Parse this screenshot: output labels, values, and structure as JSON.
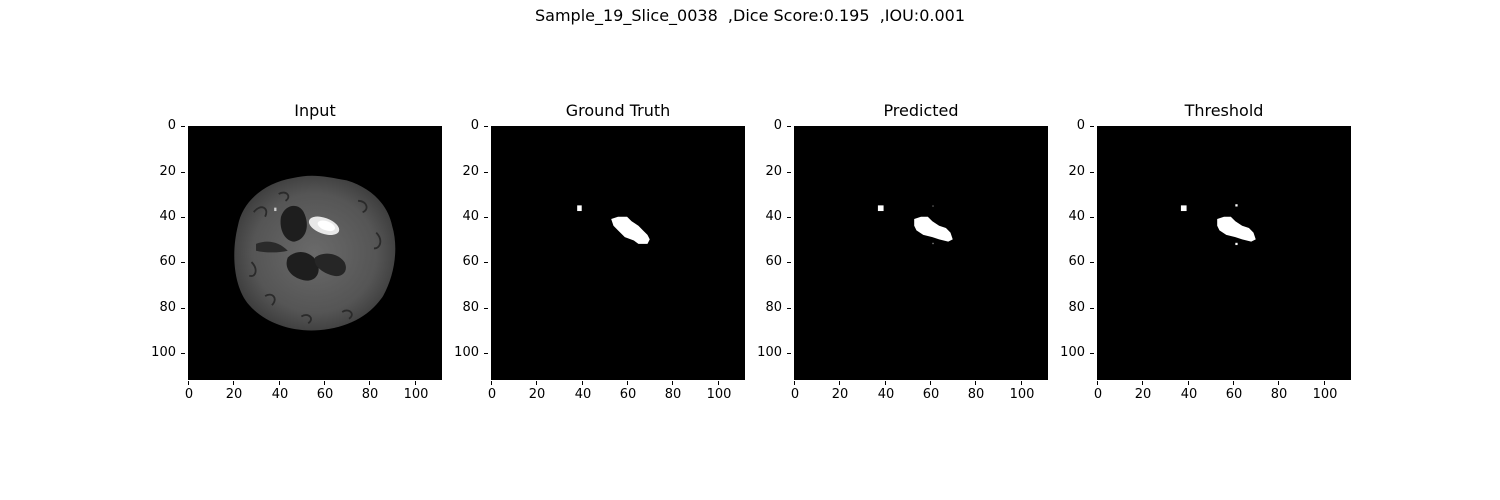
{
  "figure": {
    "title": "Sample_19_Slice_0038  ,Dice Score:0.195  ,IOU:0.001"
  },
  "axes": {
    "range": [
      0,
      112
    ],
    "ticks": [
      "0",
      "20",
      "40",
      "60",
      "80",
      "100"
    ]
  },
  "panels": [
    {
      "id": "input",
      "title": "Input",
      "content": "brain-mri-slice"
    },
    {
      "id": "ground-truth",
      "title": "Ground Truth",
      "content": "binary-mask"
    },
    {
      "id": "predicted",
      "title": "Predicted",
      "content": "binary-mask"
    },
    {
      "id": "threshold",
      "title": "Threshold",
      "content": "binary-mask"
    }
  ],
  "colors": {
    "background": "#000000",
    "mask": "#ffffff",
    "tissue": "#5a5a5a"
  }
}
